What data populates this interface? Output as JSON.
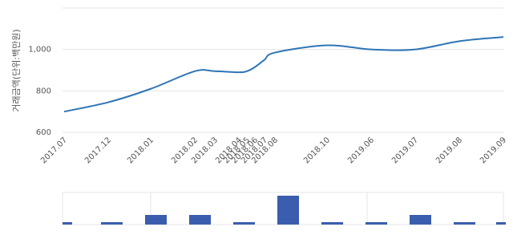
{
  "chart_data": [
    {
      "type": "line",
      "y_label": "거래금액(단위:백만원)",
      "categories": [
        "2017.07",
        "2017.12",
        "2018.01",
        "2018.02",
        "2018.03",
        "2018.04",
        "2018.05",
        "2018.06",
        "2018.07",
        "2018.08",
        "2018.10",
        "2019.06",
        "2019.07",
        "2019.08",
        "2019.09"
      ],
      "series": [
        {
          "color": "#2e75b6",
          "values": [
            700,
            745,
            810,
            895,
            895,
            890,
            895,
            915,
            950,
            985,
            1020,
            1000,
            1000,
            1040,
            1060
          ]
        }
      ],
      "ylim": [
        600,
        1200
      ],
      "yticks": [
        600,
        800,
        {
          "value": 1000,
          "label": "1,000"
        }
      ],
      "grid": true
    },
    {
      "type": "bar",
      "color": "#3a5ead",
      "values": [
        1,
        1,
        4,
        4,
        1,
        12,
        1,
        1,
        4,
        1,
        1
      ],
      "ylim": [
        0,
        12
      ]
    }
  ]
}
